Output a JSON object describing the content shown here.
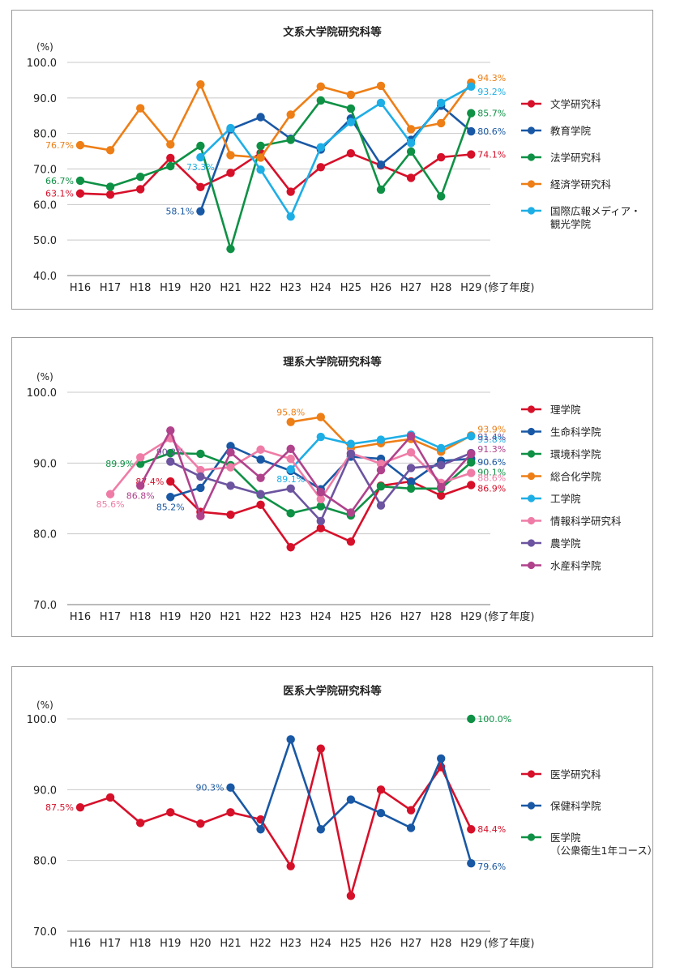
{
  "unit": "(%)",
  "chart_data": [
    {
      "type": "line",
      "title": "文系大学院研究科等",
      "ylabel": "(%)",
      "xlabel": "(修了年度)",
      "categories": [
        "H16",
        "H17",
        "H18",
        "H19",
        "H20",
        "H21",
        "H22",
        "H23",
        "H24",
        "H25",
        "H26",
        "H27",
        "H28",
        "H29"
      ],
      "yticks": [
        "100.0",
        "90.0",
        "80.0",
        "70.0",
        "60.0",
        "50.0",
        "40.0"
      ],
      "ylim": [
        40,
        100
      ],
      "grid": true,
      "legend_position": "right",
      "series": [
        {
          "name": "文学研究科",
          "color": "#d7102a",
          "values": [
            63.1,
            62.8,
            64.3,
            73.1,
            64.9,
            68.9,
            74.5,
            63.6,
            70.5,
            74.4,
            71.0,
            67.5,
            73.3,
            74.1
          ],
          "labels": [
            {
              "i": 0,
              "text": "63.1%",
              "side": "left"
            },
            {
              "i": 13,
              "text": "74.1%",
              "side": "right"
            }
          ]
        },
        {
          "name": "教育学院",
          "color": "#1958a5",
          "values": [
            null,
            null,
            null,
            null,
            58.1,
            81.2,
            84.6,
            78.5,
            75.5,
            84.2,
            71.2,
            78.2,
            87.8,
            80.6
          ],
          "labels": [
            {
              "i": 4,
              "text": "58.1%",
              "side": "left"
            },
            {
              "i": 13,
              "text": "80.6%",
              "side": "right"
            }
          ]
        },
        {
          "name": "法学研究科",
          "color": "#0e9145",
          "values": [
            66.7,
            65.0,
            67.8,
            70.8,
            76.5,
            47.5,
            76.5,
            78.2,
            89.3,
            87.0,
            64.2,
            74.9,
            62.3,
            85.7
          ],
          "labels": [
            {
              "i": 0,
              "text": "66.7%",
              "side": "left"
            },
            {
              "i": 13,
              "text": "85.7%",
              "side": "right"
            }
          ]
        },
        {
          "name": "経済学研究科",
          "color": "#ee7e16",
          "values": [
            76.7,
            75.3,
            87.1,
            76.9,
            93.8,
            73.9,
            73.2,
            85.3,
            93.2,
            90.9,
            93.4,
            81.2,
            82.9,
            94.3
          ],
          "labels": [
            {
              "i": 0,
              "text": "76.7%",
              "side": "left"
            },
            {
              "i": 13,
              "text": "94.3%",
              "side": "right",
              "dy": -6
            }
          ]
        },
        {
          "name": "国際広報メディア・観光学院",
          "name_lines": [
            "国際広報メディア・",
            "観光学院"
          ],
          "color": "#1eaee6",
          "values": [
            null,
            null,
            null,
            null,
            73.3,
            81.5,
            69.8,
            56.6,
            76.1,
            83.2,
            88.6,
            77.3,
            88.6,
            93.2
          ],
          "labels": [
            {
              "i": 4,
              "text": "73.3%",
              "side": "below"
            },
            {
              "i": 13,
              "text": "93.2%",
              "side": "right",
              "dy": 6
            }
          ]
        }
      ]
    },
    {
      "type": "line",
      "title": "理系大学院研究科等",
      "ylabel": "(%)",
      "xlabel": "(修了年度)",
      "categories": [
        "H16",
        "H17",
        "H18",
        "H19",
        "H20",
        "H21",
        "H22",
        "H23",
        "H24",
        "H25",
        "H26",
        "H27",
        "H28",
        "H29"
      ],
      "yticks": [
        "100.0",
        "90.0",
        "80.0",
        "70.0"
      ],
      "ylim": [
        70,
        100
      ],
      "grid": true,
      "legend_position": "right",
      "series": [
        {
          "name": "理学院",
          "color": "#d7102a",
          "values": [
            null,
            null,
            null,
            87.4,
            83.1,
            82.7,
            84.1,
            78.1,
            80.8,
            78.9,
            86.8,
            87.4,
            85.4,
            86.9
          ],
          "labels": [
            {
              "i": 3,
              "text": "87.4%",
              "side": "left"
            },
            {
              "i": 13,
              "text": "86.9%",
              "side": "right",
              "dy": 4
            }
          ]
        },
        {
          "name": "生命科学院",
          "color": "#1958a5",
          "values": [
            null,
            null,
            null,
            85.2,
            86.5,
            92.4,
            90.5,
            88.9,
            86.3,
            90.9,
            90.6,
            87.3,
            90.3,
            90.6
          ],
          "labels": [
            {
              "i": 3,
              "text": "85.2%",
              "side": "below"
            },
            {
              "i": 13,
              "text": "90.6%",
              "side": "right",
              "dy": 4
            }
          ]
        },
        {
          "name": "環境科学院",
          "color": "#0e9145",
          "values": [
            null,
            null,
            89.9,
            91.4,
            91.3,
            89.7,
            85.5,
            82.9,
            83.9,
            82.6,
            86.7,
            86.4,
            86.4,
            90.1
          ],
          "labels": [
            {
              "i": 2,
              "text": "89.9%",
              "side": "left"
            },
            {
              "i": 13,
              "text": "90.1%",
              "side": "right",
              "dy": 12
            }
          ]
        },
        {
          "name": "総合化学院",
          "color": "#ee7e16",
          "values": [
            null,
            null,
            null,
            null,
            null,
            null,
            null,
            95.8,
            96.5,
            92.1,
            92.8,
            93.4,
            91.6,
            93.9
          ],
          "labels": [
            {
              "i": 7,
              "text": "95.8%",
              "side": "above"
            },
            {
              "i": 13,
              "text": "93.9%",
              "side": "right",
              "dy": -8
            }
          ]
        },
        {
          "name": "工学院",
          "color": "#1eaee6",
          "values": [
            null,
            null,
            null,
            null,
            null,
            null,
            null,
            89.1,
            93.7,
            92.7,
            93.3,
            94.0,
            92.1,
            93.8
          ],
          "labels": [
            {
              "i": 7,
              "text": "89.1%",
              "side": "below"
            },
            {
              "i": 13,
              "text": "93.8%",
              "side": "right",
              "dy": 4
            }
          ]
        },
        {
          "name": "情報科学研究科",
          "color": "#ef7ca6",
          "values": [
            null,
            85.6,
            90.8,
            93.5,
            89.0,
            89.4,
            91.9,
            90.6,
            84.9,
            91.4,
            89.9,
            91.5,
            87.2,
            88.6
          ],
          "labels": [
            {
              "i": 1,
              "text": "85.6%",
              "side": "below"
            },
            {
              "i": 13,
              "text": "88.6%",
              "side": "right",
              "dy": 6
            }
          ]
        },
        {
          "name": "農学院",
          "color": "#6c54a0",
          "values": [
            null,
            null,
            null,
            90.2,
            88.1,
            86.8,
            85.6,
            86.4,
            81.8,
            91.3,
            84.0,
            89.3,
            89.7,
            91.4
          ],
          "labels": [
            {
              "i": 3,
              "text": "90.2%",
              "side": "above"
            },
            {
              "i": 13,
              "text": "91.4%",
              "side": "right",
              "dy": -20
            }
          ]
        },
        {
          "name": "水産科学院",
          "color": "#b0428c",
          "values": [
            null,
            null,
            86.8,
            94.6,
            82.5,
            91.5,
            87.9,
            92.0,
            85.9,
            83.0,
            89.0,
            93.8,
            86.6,
            91.3
          ],
          "labels": [
            {
              "i": 2,
              "text": "86.8%",
              "side": "below"
            },
            {
              "i": 13,
              "text": "91.3%",
              "side": "right",
              "dy": -6
            }
          ]
        }
      ]
    },
    {
      "type": "line",
      "title": "医系大学院研究科等",
      "ylabel": "(%)",
      "xlabel": "(修了年度)",
      "categories": [
        "H16",
        "H17",
        "H18",
        "H19",
        "H20",
        "H21",
        "H22",
        "H23",
        "H24",
        "H25",
        "H26",
        "H27",
        "H28",
        "H29"
      ],
      "yticks": [
        "100.0",
        "90.0",
        "80.0",
        "70.0"
      ],
      "ylim": [
        70,
        100
      ],
      "grid": true,
      "legend_position": "right",
      "series": [
        {
          "name": "医学研究科",
          "color": "#d7102a",
          "values": [
            87.5,
            88.9,
            85.3,
            86.8,
            85.2,
            86.8,
            85.8,
            79.2,
            95.8,
            75.0,
            90.0,
            87.1,
            93.2,
            84.4
          ],
          "labels": [
            {
              "i": 0,
              "text": "87.5%",
              "side": "left"
            },
            {
              "i": 13,
              "text": "84.4%",
              "side": "right"
            }
          ]
        },
        {
          "name": "保健科学院",
          "color": "#1958a5",
          "values": [
            null,
            null,
            null,
            null,
            null,
            90.3,
            84.4,
            97.1,
            84.4,
            88.6,
            86.7,
            84.6,
            94.4,
            79.6
          ],
          "labels": [
            {
              "i": 5,
              "text": "90.3%",
              "side": "left"
            },
            {
              "i": 13,
              "text": "79.6%",
              "side": "right",
              "dy": 4
            }
          ]
        },
        {
          "name": "医学院（公衆衛生1年コース）",
          "name_lines": [
            "医学院",
            "（公衆衛生1年コース）"
          ],
          "color": "#0e9145",
          "values": [
            null,
            null,
            null,
            null,
            null,
            null,
            null,
            null,
            null,
            null,
            null,
            null,
            null,
            100.0
          ],
          "labels": [
            {
              "i": 13,
              "text": "100.0%",
              "side": "right"
            }
          ]
        }
      ]
    }
  ]
}
